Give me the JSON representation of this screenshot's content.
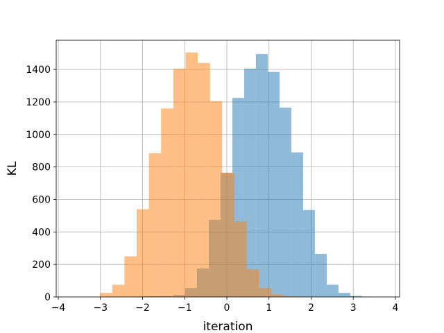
{
  "chart_data": {
    "type": "bar",
    "subtype": "overlapping-histogram",
    "title": "",
    "xlabel": "iteration",
    "ylabel": "KL",
    "xlim": [
      -4.05,
      4.1
    ],
    "ylim": [
      0,
      1580
    ],
    "grid": true,
    "legend": "none",
    "xticks": [
      -4,
      -3,
      -2,
      -1,
      0,
      1,
      2,
      3,
      4
    ],
    "yticks": [
      0,
      200,
      400,
      600,
      800,
      1000,
      1200,
      1400
    ],
    "series": [
      {
        "color": "#1f77b4",
        "alpha": 0.5,
        "bins": [
          {
            "x0": -2.39,
            "x1": -2.11,
            "count": 2
          },
          {
            "x0": -2.11,
            "x1": -1.83,
            "count": 3
          },
          {
            "x0": -1.83,
            "x1": -1.55,
            "count": 4
          },
          {
            "x0": -1.55,
            "x1": -1.27,
            "count": 5
          },
          {
            "x0": -1.27,
            "x1": -0.99,
            "count": 12
          },
          {
            "x0": -0.99,
            "x1": -0.71,
            "count": 55
          },
          {
            "x0": -0.71,
            "x1": -0.43,
            "count": 175
          },
          {
            "x0": -0.43,
            "x1": -0.15,
            "count": 475
          },
          {
            "x0": -0.15,
            "x1": 0.13,
            "count": 765
          },
          {
            "x0": 0.13,
            "x1": 0.41,
            "count": 1225
          },
          {
            "x0": 0.41,
            "x1": 0.69,
            "count": 1405
          },
          {
            "x0": 0.69,
            "x1": 0.97,
            "count": 1495
          },
          {
            "x0": 0.97,
            "x1": 1.25,
            "count": 1385
          },
          {
            "x0": 1.25,
            "x1": 1.53,
            "count": 1165
          },
          {
            "x0": 1.53,
            "x1": 1.81,
            "count": 890
          },
          {
            "x0": 1.81,
            "x1": 2.09,
            "count": 535
          },
          {
            "x0": 2.09,
            "x1": 2.37,
            "count": 265
          },
          {
            "x0": 2.37,
            "x1": 2.65,
            "count": 75
          },
          {
            "x0": 2.65,
            "x1": 2.93,
            "count": 25
          },
          {
            "x0": 2.93,
            "x1": 3.21,
            "count": 6
          },
          {
            "x0": 3.21,
            "x1": 3.49,
            "count": 2
          }
        ]
      },
      {
        "color": "#ff7f0e",
        "alpha": 0.5,
        "bins": [
          {
            "x0": -3.3,
            "x1": -3.01,
            "count": 2
          },
          {
            "x0": -3.01,
            "x1": -2.72,
            "count": 25
          },
          {
            "x0": -2.72,
            "x1": -2.43,
            "count": 75
          },
          {
            "x0": -2.43,
            "x1": -2.14,
            "count": 250
          },
          {
            "x0": -2.14,
            "x1": -1.85,
            "count": 540
          },
          {
            "x0": -1.85,
            "x1": -1.56,
            "count": 885
          },
          {
            "x0": -1.56,
            "x1": -1.27,
            "count": 1160
          },
          {
            "x0": -1.27,
            "x1": -0.98,
            "count": 1405
          },
          {
            "x0": -0.98,
            "x1": -0.69,
            "count": 1505
          },
          {
            "x0": -0.69,
            "x1": -0.4,
            "count": 1440
          },
          {
            "x0": -0.4,
            "x1": -0.11,
            "count": 1205
          },
          {
            "x0": -0.11,
            "x1": 0.18,
            "count": 760
          },
          {
            "x0": 0.18,
            "x1": 0.47,
            "count": 465
          },
          {
            "x0": 0.47,
            "x1": 0.76,
            "count": 170
          },
          {
            "x0": 0.76,
            "x1": 1.05,
            "count": 55
          },
          {
            "x0": 1.05,
            "x1": 1.34,
            "count": 15
          },
          {
            "x0": 1.34,
            "x1": 1.63,
            "count": 5
          },
          {
            "x0": 1.63,
            "x1": 1.92,
            "count": 3
          },
          {
            "x0": 1.92,
            "x1": 2.21,
            "count": 2
          }
        ]
      }
    ]
  }
}
